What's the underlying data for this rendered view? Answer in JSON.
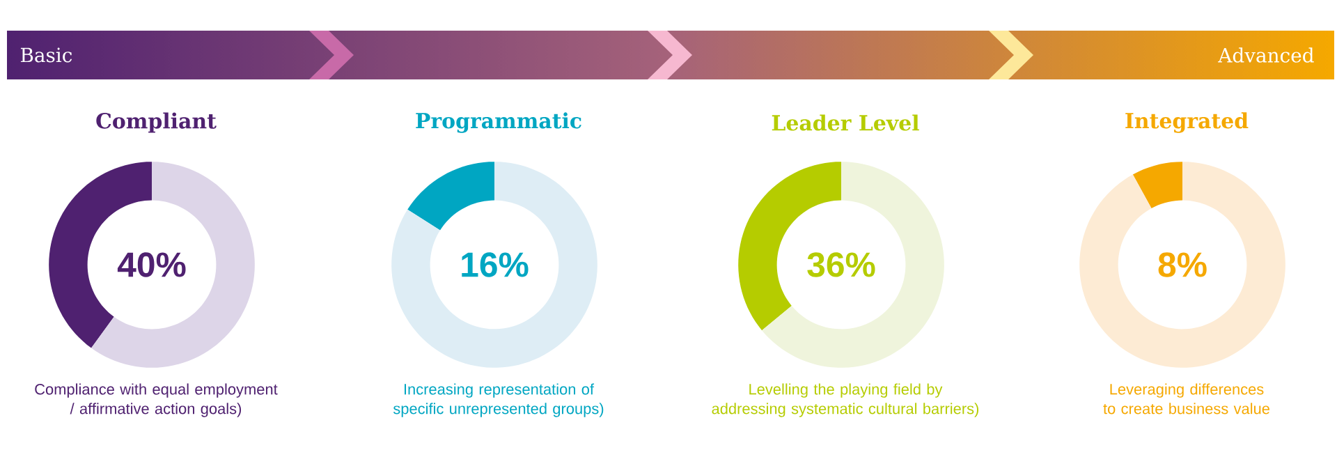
{
  "chart_data": [
    {
      "type": "other",
      "annotations": [
        "Basic",
        "Advanced"
      ]
    },
    {
      "type": "donut",
      "title": "Compliant",
      "categories": [
        null,
        null
      ],
      "values": [
        40,
        60
      ],
      "colors": [
        "#4f2170",
        "#ddd5e8"
      ],
      "annotations": [
        "40%",
        "Compliance with equal employment / affirmative action goals)"
      ]
    },
    {
      "type": "donut",
      "title": "Programmatic",
      "categories": [
        null,
        null
      ],
      "values": [
        16,
        84
      ],
      "colors": [
        "#00a6c2",
        "#deedf5"
      ],
      "annotations": [
        "16%",
        "Increasing representation of specific unrepresented groups)"
      ]
    },
    {
      "type": "donut",
      "title": "Leader Level",
      "categories": [
        null,
        null
      ],
      "values": [
        36,
        64
      ],
      "colors": [
        "#b5cc00",
        "#eff4dc"
      ],
      "annotations": [
        "36%",
        "Levelling the playing field by addressing systematic cultural barriers)"
      ]
    },
    {
      "type": "donut",
      "title": "Integrated",
      "categories": [
        null,
        null
      ],
      "values": [
        8,
        92
      ],
      "colors": [
        "#f5a800",
        "#fdebd4"
      ],
      "annotations": [
        "8%",
        "Leveraging differences to create business value"
      ]
    }
  ]
}
